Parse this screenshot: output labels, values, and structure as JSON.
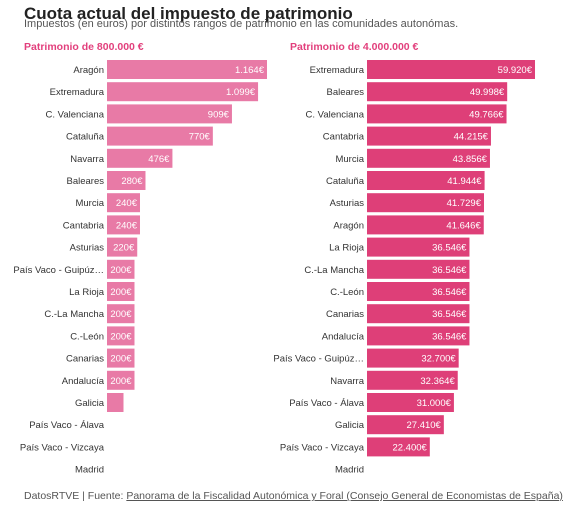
{
  "header": {
    "title": "Cuota actual del impuesto de patrimonio",
    "subtitle": "Impuestos (en euros) por distintos rangos de patrimonio en las comunidades autonómas."
  },
  "footer": {
    "source_prefix": "DatosRTVE | Fuente: ",
    "source_link": "Panorama de la Fiscalidad Autonómica y Foral (Consejo General de Economistas de España)"
  },
  "colors": {
    "left_bar": "#e87aa6",
    "right_bar": "#de3f78",
    "heading": "#e23f7c"
  },
  "chart_data": [
    {
      "type": "bar",
      "orientation": "horizontal",
      "title": "Patrimonio de 800.000 €",
      "categories": [
        "Aragón",
        "Extremadura",
        "C. Valenciana",
        "Cataluña",
        "Navarra",
        "Baleares",
        "Murcia",
        "Cantabria",
        "Asturias",
        "País Vaco - Guipúz…",
        "La Rioja",
        "C.-La Mancha",
        "C.-León",
        "Canarias",
        "Andalucía",
        "Galicia",
        "País Vaco - Álava",
        "País Vaco - Vizcaya",
        "Madrid"
      ],
      "values": [
        1164,
        1099,
        909,
        770,
        476,
        280,
        240,
        240,
        220,
        200,
        200,
        200,
        200,
        200,
        200,
        120,
        0,
        0,
        0
      ],
      "labels": [
        "1.164€",
        "1.099€",
        "909€",
        "770€",
        "476€",
        "280€",
        "240€",
        "240€",
        "220€",
        "200€",
        "200€",
        "200€",
        "200€",
        "200€",
        "200€",
        "",
        "",
        "",
        ""
      ],
      "xlim": [
        0,
        1164
      ]
    },
    {
      "type": "bar",
      "orientation": "horizontal",
      "title": "Patrimonio de 4.000.000 €",
      "categories": [
        "Extremadura",
        "Baleares",
        "C. Valenciana",
        "Cantabria",
        "Murcia",
        "Cataluña",
        "Asturias",
        "Aragón",
        "La Rioja",
        "C.-La Mancha",
        "C.-León",
        "Canarias",
        "Andalucía",
        "País Vaco - Guipúz…",
        "Navarra",
        "País Vaco - Álava",
        "Galicia",
        "País Vaco - Vizcaya",
        "Madrid"
      ],
      "values": [
        59920,
        49998,
        49766,
        44215,
        43856,
        41944,
        41729,
        41646,
        36546,
        36546,
        36546,
        36546,
        36546,
        32700,
        32364,
        31000,
        27410,
        22400,
        0
      ],
      "labels": [
        "59.920€",
        "49.998€",
        "49.766€",
        "44.215€",
        "43.856€",
        "41.944€",
        "41.729€",
        "41.646€",
        "36.546€",
        "36.546€",
        "36.546€",
        "36.546€",
        "36.546€",
        "32.700€",
        "32.364€",
        "31.000€",
        "27.410€",
        "22.400€",
        ""
      ],
      "xlim": [
        0,
        59920
      ]
    }
  ]
}
